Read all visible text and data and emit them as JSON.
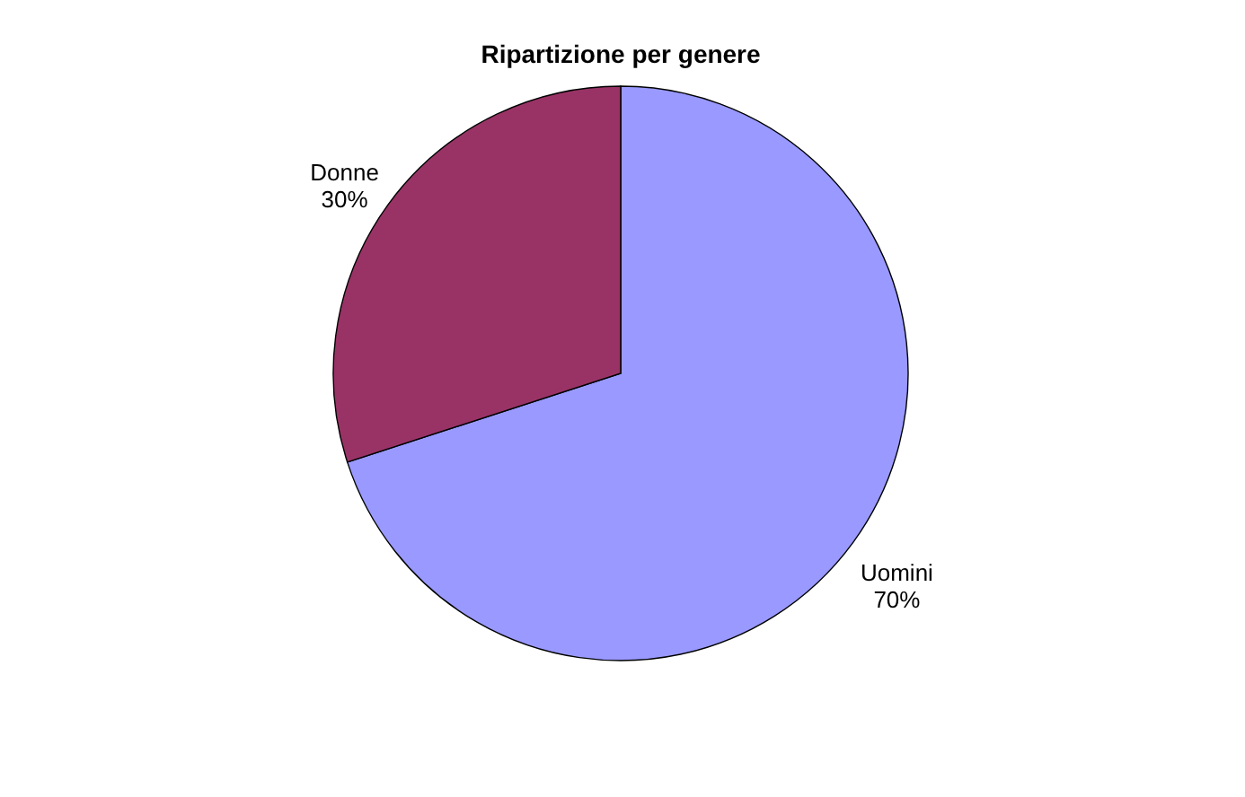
{
  "chart_data": {
    "type": "pie",
    "title": "Ripartizione per genere",
    "categories": [
      "Uomini",
      "Donne"
    ],
    "values": [
      70,
      30
    ],
    "colors": [
      "#9999ff",
      "#993366"
    ],
    "value_labels": [
      "70%",
      "30%"
    ],
    "legend": false
  }
}
